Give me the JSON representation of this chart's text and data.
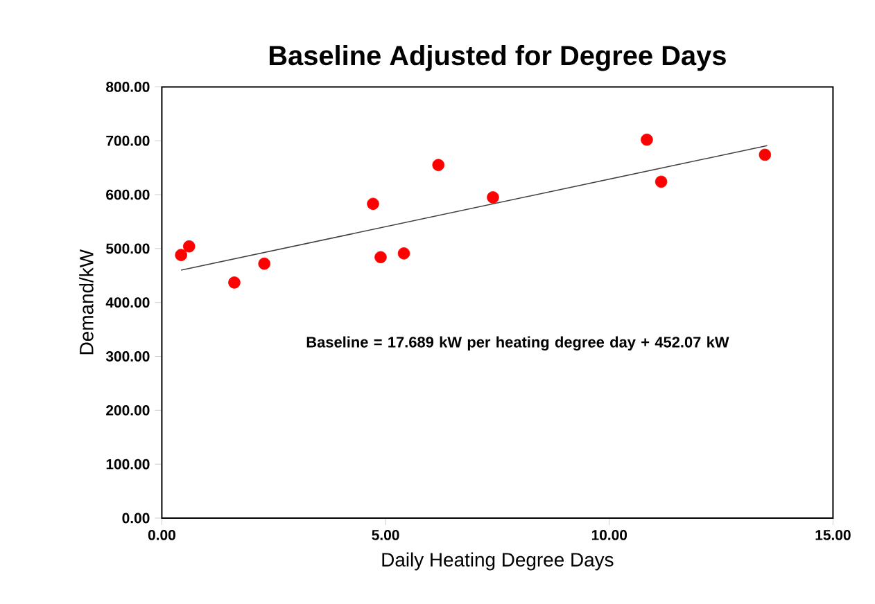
{
  "chart_data": {
    "type": "scatter",
    "title": "Baseline Adjusted for Degree Days",
    "xlabel": "Daily Heating Degree Days",
    "ylabel": "Demand/kW",
    "annotations": [
      "Baseline = 17.689 kW per heating degree day + 452.07 kW"
    ],
    "xlim": [
      0,
      15
    ],
    "ylim": [
      0,
      800
    ],
    "xticks": [
      {
        "value": 0,
        "label": "0.00"
      },
      {
        "value": 5,
        "label": "5.00"
      },
      {
        "value": 10,
        "label": "10.00"
      },
      {
        "value": 15,
        "label": "15.00"
      }
    ],
    "yticks": [
      {
        "value": 0,
        "label": "0.00"
      },
      {
        "value": 100,
        "label": "100.00"
      },
      {
        "value": 200,
        "label": "200.00"
      },
      {
        "value": 300,
        "label": "300.00"
      },
      {
        "value": 400,
        "label": "400.00"
      },
      {
        "value": 500,
        "label": "500.00"
      },
      {
        "value": 600,
        "label": "600.00"
      },
      {
        "value": 700,
        "label": "700.00"
      },
      {
        "value": 800,
        "label": "800.00"
      }
    ],
    "marker": "circle",
    "series": [
      {
        "color": "#ff0000",
        "x": [
          0.43,
          0.61,
          1.62,
          2.29,
          4.72,
          4.89,
          5.41,
          6.18,
          7.4,
          10.84,
          11.16,
          13.48
        ],
        "values": [
          488,
          504,
          437,
          472,
          583,
          484,
          491,
          655,
          595,
          702,
          624,
          674
        ]
      },
      {
        "type": "line",
        "marker": "none",
        "color": "#404040",
        "x": [
          0.43,
          13.53
        ],
        "values": [
          460,
          691
        ]
      }
    ]
  }
}
